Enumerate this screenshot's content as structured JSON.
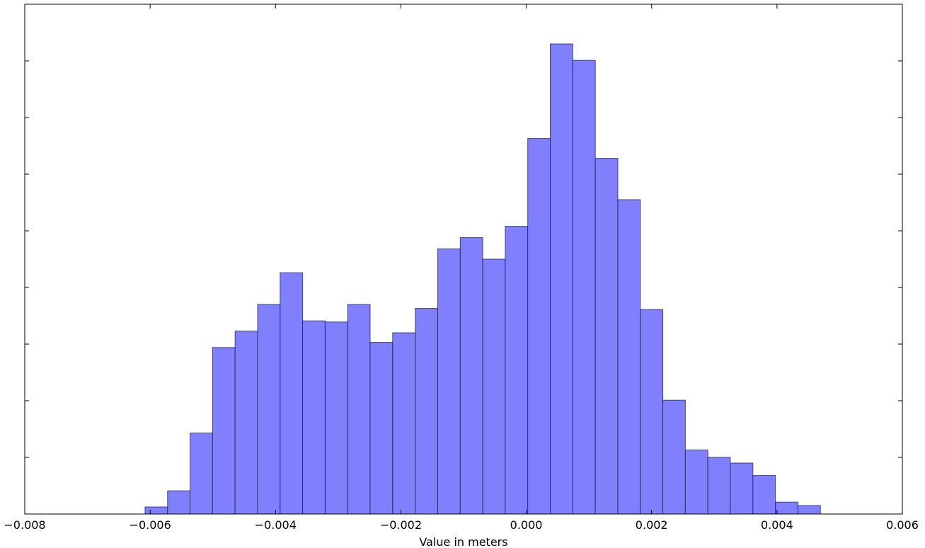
{
  "chart_data": {
    "type": "histogram",
    "xlabel": "Value in meters",
    "bins": [
      -0.006081,
      -0.005722,
      -0.005363,
      -0.005004,
      -0.004645,
      -0.004285,
      -0.003926,
      -0.003567,
      -0.003208,
      -0.002849,
      -0.00249,
      -0.002131,
      -0.001771,
      -0.001412,
      -0.001053,
      -0.000694,
      -0.000335,
      2.4e-05,
      0.000383,
      0.000742,
      0.001102,
      0.001461,
      0.00182,
      0.002179,
      0.002538,
      0.002897,
      0.003256,
      0.003616,
      0.003975,
      0.004334,
      0.004693
    ],
    "values": [
      0.125,
      0.41,
      1.43,
      2.94,
      3.23,
      3.7,
      4.26,
      3.41,
      3.39,
      3.7,
      3.03,
      3.2,
      3.63,
      4.68,
      4.88,
      4.5,
      5.08,
      6.63,
      8.3,
      8.01,
      6.28,
      5.55,
      3.61,
      2.01,
      1.13,
      1.0,
      0.9,
      0.68,
      0.21,
      0.15
    ],
    "color": "#8080ff",
    "xlim": [
      -0.008,
      0.006
    ],
    "xticks": [
      {
        "value": -0.008,
        "label": "−0.008"
      },
      {
        "value": -0.006,
        "label": "−0.006"
      },
      {
        "value": -0.004,
        "label": "−0.004"
      },
      {
        "value": -0.002,
        "label": "−0.002"
      },
      {
        "value": 0,
        "label": "0.000"
      },
      {
        "value": 0.002,
        "label": "0.002"
      },
      {
        "value": 0.004,
        "label": "0.004"
      },
      {
        "value": 0.006,
        "label": "0.006"
      }
    ],
    "ylim": [
      0,
      9
    ],
    "yticks": [
      1,
      2,
      3,
      4,
      5,
      6,
      7,
      8
    ]
  }
}
